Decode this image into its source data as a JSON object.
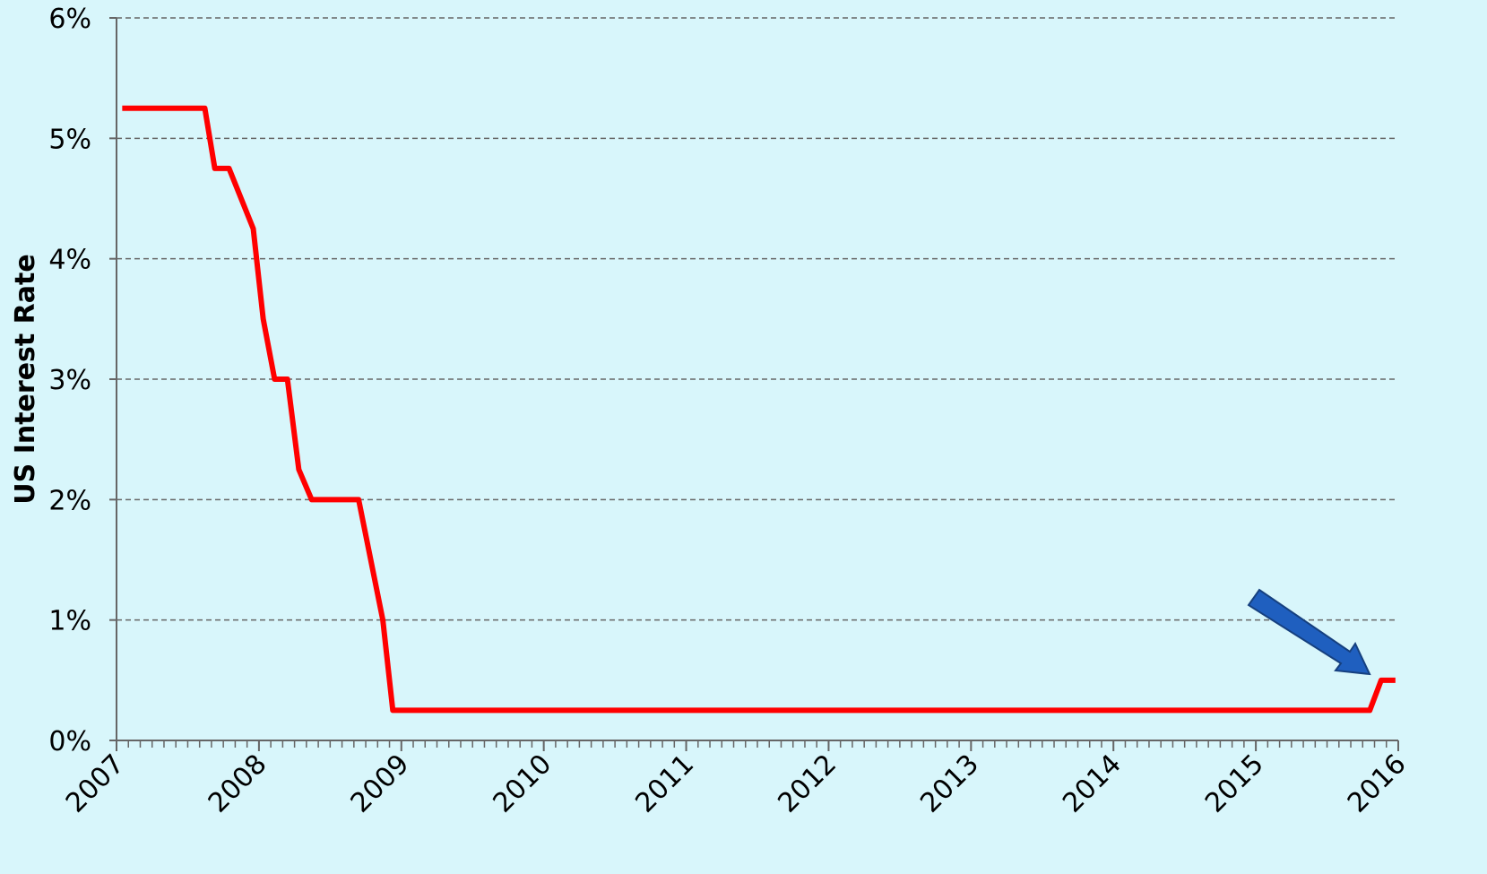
{
  "chart_data": {
    "type": "line",
    "y_label": "US Interest Rate",
    "color": "#ff0000",
    "x": [
      2007.04,
      2007.62,
      2007.69,
      2007.79,
      2007.96,
      2008.03,
      2008.11,
      2008.2,
      2008.28,
      2008.37,
      2008.7,
      2008.87,
      2008.94,
      2015.8,
      2015.88,
      2015.98
    ],
    "values": [
      5.25,
      5.25,
      4.75,
      4.75,
      4.25,
      3.5,
      3.0,
      3.0,
      2.25,
      2.0,
      2.0,
      1.0,
      0.25,
      0.25,
      0.5,
      0.5
    ],
    "xlim": [
      2007,
      2016
    ],
    "xticks": [
      2007,
      2008,
      2009,
      2010,
      2011,
      2012,
      2013,
      2014,
      2015,
      2016
    ],
    "ylim": [
      0,
      6
    ],
    "yticks": [
      {
        "value": 0,
        "label": "0%"
      },
      {
        "value": 1,
        "label": "1%"
      },
      {
        "value": 2,
        "label": "2%"
      },
      {
        "value": 3,
        "label": "3%"
      },
      {
        "value": 4,
        "label": "4%"
      },
      {
        "value": 5,
        "label": "5%"
      },
      {
        "value": 6,
        "label": "6%"
      }
    ],
    "grid": true
  }
}
